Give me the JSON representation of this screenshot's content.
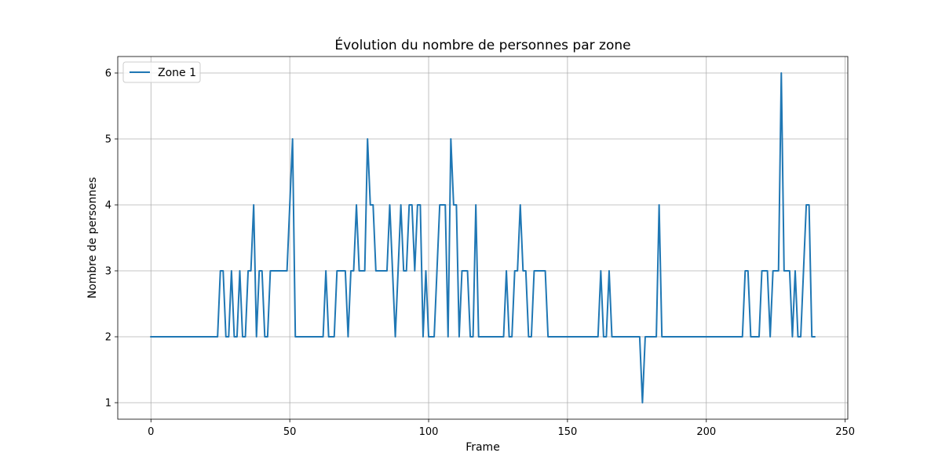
{
  "chart_data": {
    "type": "line",
    "title": "Évolution du nombre de personnes par zone",
    "xlabel": "Frame",
    "ylabel": "Nombre de personnes",
    "xlim": [
      -11.95,
      250.95
    ],
    "ylim": [
      0.75,
      6.25
    ],
    "xticks": [
      0,
      50,
      100,
      150,
      200,
      250
    ],
    "yticks": [
      1,
      2,
      3,
      4,
      5,
      6
    ],
    "grid": true,
    "legend_position": "upper-left",
    "series": [
      {
        "name": "Zone 1",
        "color": "#1f77b4",
        "x": [
          0,
          1,
          2,
          3,
          4,
          5,
          6,
          7,
          8,
          9,
          10,
          11,
          12,
          13,
          14,
          15,
          16,
          17,
          18,
          19,
          20,
          21,
          22,
          23,
          24,
          25,
          26,
          27,
          28,
          29,
          30,
          31,
          32,
          33,
          34,
          35,
          36,
          37,
          38,
          39,
          40,
          41,
          42,
          43,
          44,
          45,
          46,
          47,
          48,
          49,
          50,
          51,
          52,
          53,
          54,
          55,
          56,
          57,
          58,
          59,
          60,
          61,
          62,
          63,
          64,
          65,
          66,
          67,
          68,
          69,
          70,
          71,
          72,
          73,
          74,
          75,
          76,
          77,
          78,
          79,
          80,
          81,
          82,
          83,
          84,
          85,
          86,
          87,
          88,
          89,
          90,
          91,
          92,
          93,
          94,
          95,
          96,
          97,
          98,
          99,
          100,
          101,
          102,
          103,
          104,
          105,
          106,
          107,
          108,
          109,
          110,
          111,
          112,
          113,
          114,
          115,
          116,
          117,
          118,
          119,
          120,
          121,
          122,
          123,
          124,
          125,
          126,
          127,
          128,
          129,
          130,
          131,
          132,
          133,
          134,
          135,
          136,
          137,
          138,
          139,
          140,
          141,
          142,
          143,
          144,
          145,
          146,
          147,
          148,
          149,
          150,
          151,
          152,
          153,
          154,
          155,
          156,
          157,
          158,
          159,
          160,
          161,
          162,
          163,
          164,
          165,
          166,
          167,
          168,
          169,
          170,
          171,
          172,
          173,
          174,
          175,
          176,
          177,
          178,
          179,
          180,
          181,
          182,
          183,
          184,
          185,
          186,
          187,
          188,
          189,
          190,
          191,
          192,
          193,
          194,
          195,
          196,
          197,
          198,
          199,
          200,
          201,
          202,
          203,
          204,
          205,
          206,
          207,
          208,
          209,
          210,
          211,
          212,
          213,
          214,
          215,
          216,
          217,
          218,
          219,
          220,
          221,
          222,
          223,
          224,
          225,
          226,
          227,
          228,
          229,
          230,
          231,
          232,
          233,
          234,
          235,
          236,
          237,
          238,
          239
        ],
        "y": [
          2,
          2,
          2,
          2,
          2,
          2,
          2,
          2,
          2,
          2,
          2,
          2,
          2,
          2,
          2,
          2,
          2,
          2,
          2,
          2,
          2,
          2,
          2,
          2,
          2,
          3,
          3,
          2,
          2,
          3,
          2,
          2,
          3,
          2,
          2,
          3,
          3,
          4,
          2,
          3,
          3,
          2,
          2,
          3,
          3,
          3,
          3,
          3,
          3,
          3,
          4,
          5,
          2,
          2,
          2,
          2,
          2,
          2,
          2,
          2,
          2,
          2,
          2,
          3,
          2,
          2,
          2,
          3,
          3,
          3,
          3,
          2,
          3,
          3,
          4,
          3,
          3,
          3,
          5,
          4,
          4,
          3,
          3,
          3,
          3,
          3,
          4,
          3,
          2,
          3,
          4,
          3,
          3,
          4,
          4,
          3,
          4,
          4,
          2,
          3,
          2,
          2,
          2,
          3,
          4,
          4,
          4,
          2,
          5,
          4,
          4,
          2,
          3,
          3,
          3,
          2,
          2,
          4,
          2,
          2,
          2,
          2,
          2,
          2,
          2,
          2,
          2,
          2,
          3,
          2,
          2,
          3,
          3,
          4,
          3,
          3,
          2,
          2,
          3,
          3,
          3,
          3,
          3,
          2,
          2,
          2,
          2,
          2,
          2,
          2,
          2,
          2,
          2,
          2,
          2,
          2,
          2,
          2,
          2,
          2,
          2,
          2,
          3,
          2,
          2,
          3,
          2,
          2,
          2,
          2,
          2,
          2,
          2,
          2,
          2,
          2,
          2,
          1,
          2,
          2,
          2,
          2,
          2,
          4,
          2,
          2,
          2,
          2,
          2,
          2,
          2,
          2,
          2,
          2,
          2,
          2,
          2,
          2,
          2,
          2,
          2,
          2,
          2,
          2,
          2,
          2,
          2,
          2,
          2,
          2,
          2,
          2,
          2,
          2,
          3,
          3,
          2,
          2,
          2,
          2,
          3,
          3,
          3,
          2,
          3,
          3,
          3,
          6,
          3,
          3,
          3,
          2,
          3,
          2,
          2,
          3,
          4,
          4,
          2,
          2
        ]
      }
    ]
  }
}
